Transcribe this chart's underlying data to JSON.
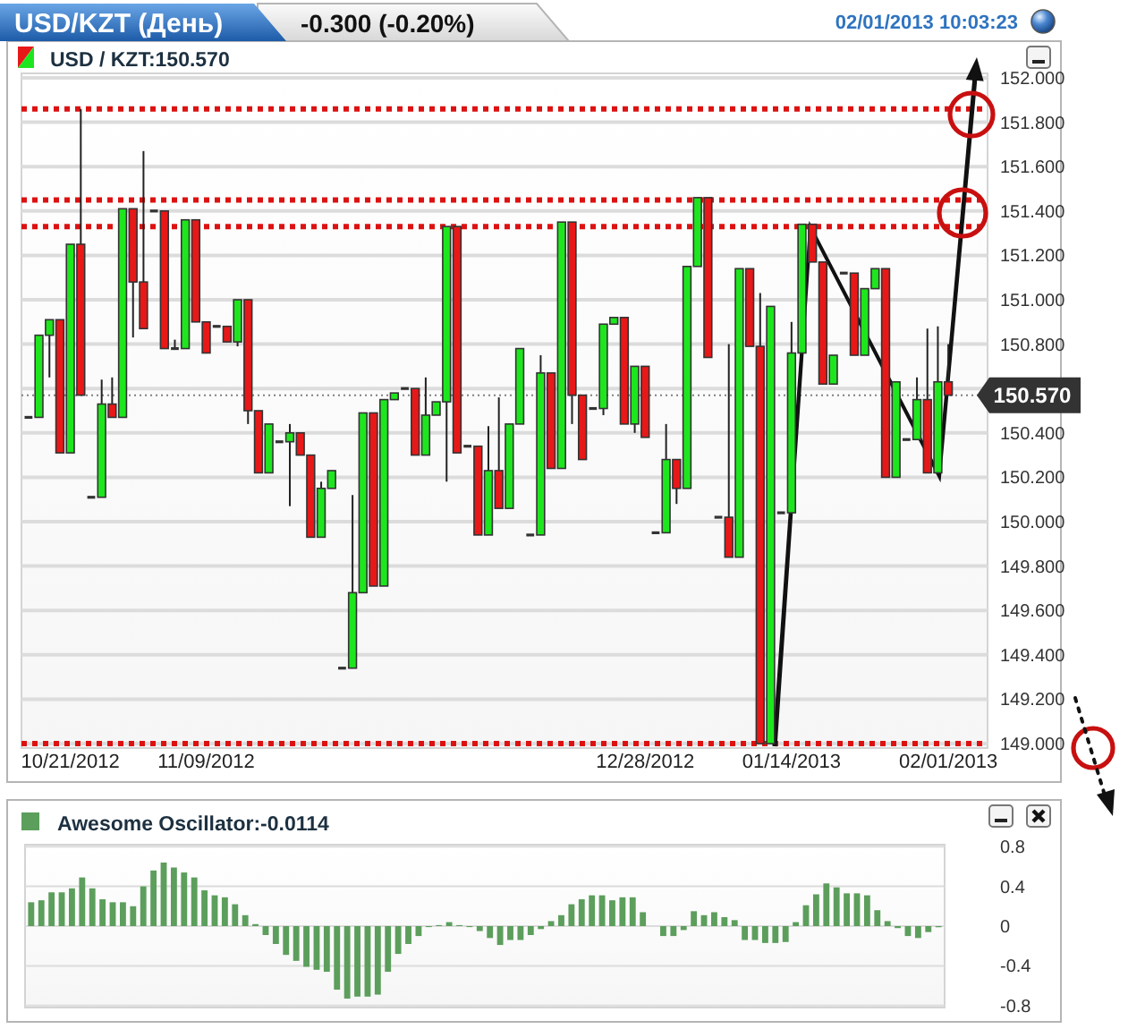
{
  "chart_data": [
    {
      "type": "candlestick",
      "title": "USD/KZT (День)",
      "subtitle": "-0.300 (-0.20%)",
      "annotations": [
        "02/01/2013 10:03:23",
        "USD / KZT:150.570"
      ],
      "categories": [
        null,
        null,
        null,
        null,
        "10/21/2012",
        null,
        null,
        null,
        null,
        null,
        null,
        null,
        null,
        null,
        null,
        null,
        null,
        "11/09/2012",
        null,
        null,
        null,
        null,
        null,
        null,
        null,
        null,
        null,
        null,
        null,
        null,
        null,
        null,
        null,
        null,
        null,
        null,
        null,
        null,
        null,
        null,
        null,
        null,
        null,
        null,
        null,
        null,
        null,
        null,
        null,
        null,
        null,
        null,
        null,
        null,
        null,
        null,
        null,
        null,
        null,
        "12/28/2012",
        null,
        null,
        null,
        null,
        null,
        null,
        null,
        null,
        null,
        null,
        null,
        null,
        null,
        "01/14/2013",
        null,
        null,
        null,
        null,
        null,
        null,
        null,
        null,
        null,
        null,
        null,
        null,
        null,
        null,
        "02/01/2013"
      ],
      "ohlc": [
        [
          150.47,
          150.47,
          150.47,
          150.47
        ],
        [
          150.47,
          150.84,
          150.47,
          150.84
        ],
        [
          150.84,
          150.91,
          150.65,
          150.91
        ],
        [
          150.91,
          150.91,
          150.31,
          150.31
        ],
        [
          150.31,
          151.25,
          150.31,
          151.25
        ],
        [
          151.25,
          151.86,
          150.57,
          150.57
        ],
        [
          150.11,
          150.11,
          150.11,
          150.11
        ],
        [
          150.11,
          150.64,
          150.11,
          150.53
        ],
        [
          150.53,
          150.65,
          150.47,
          150.47
        ],
        [
          150.47,
          151.41,
          150.47,
          151.41
        ],
        [
          151.41,
          151.41,
          150.83,
          151.08
        ],
        [
          151.08,
          151.67,
          150.87,
          150.87
        ],
        [
          151.4,
          151.4,
          151.4,
          151.4
        ],
        [
          151.4,
          151.4,
          150.78,
          150.78
        ],
        [
          150.78,
          150.82,
          150.78,
          150.78
        ],
        [
          150.78,
          151.36,
          150.78,
          151.36
        ],
        [
          151.36,
          151.36,
          150.9,
          150.9
        ],
        [
          150.9,
          150.9,
          150.76,
          150.76
        ],
        [
          150.88,
          150.88,
          150.88,
          150.88
        ],
        [
          150.88,
          150.88,
          150.81,
          150.81
        ],
        [
          150.81,
          151.0,
          150.79,
          151.0
        ],
        [
          151.0,
          151.0,
          150.44,
          150.5
        ],
        [
          150.5,
          150.5,
          150.22,
          150.22
        ],
        [
          150.22,
          150.44,
          150.22,
          150.44
        ],
        [
          150.36,
          150.36,
          150.36,
          150.36
        ],
        [
          150.36,
          150.44,
          150.07,
          150.4
        ],
        [
          150.4,
          150.4,
          150.3,
          150.3
        ],
        [
          150.3,
          150.3,
          149.93,
          149.93
        ],
        [
          149.93,
          150.18,
          149.93,
          150.15
        ],
        [
          150.15,
          150.23,
          150.15,
          150.23
        ],
        [
          149.34,
          149.34,
          149.34,
          149.34
        ],
        [
          149.34,
          150.12,
          149.34,
          149.68
        ],
        [
          149.68,
          150.49,
          149.68,
          150.49
        ],
        [
          150.49,
          150.49,
          149.71,
          149.71
        ],
        [
          149.71,
          150.55,
          149.71,
          150.55
        ],
        [
          150.55,
          150.58,
          150.55,
          150.58
        ],
        [
          150.6,
          150.6,
          150.6,
          150.6
        ],
        [
          150.6,
          150.6,
          150.3,
          150.3
        ],
        [
          150.3,
          150.65,
          150.3,
          150.48
        ],
        [
          150.48,
          150.54,
          150.48,
          150.54
        ],
        [
          150.54,
          151.33,
          150.18,
          151.33
        ],
        [
          151.33,
          151.33,
          150.31,
          150.31
        ],
        [
          150.34,
          150.34,
          150.34,
          150.34
        ],
        [
          150.34,
          150.34,
          149.94,
          149.94
        ],
        [
          149.94,
          150.43,
          149.94,
          150.23
        ],
        [
          150.23,
          150.56,
          150.06,
          150.06
        ],
        [
          150.06,
          150.44,
          150.06,
          150.44
        ],
        [
          150.44,
          150.78,
          150.44,
          150.78
        ],
        [
          149.94,
          149.94,
          149.94,
          149.94
        ],
        [
          149.94,
          150.75,
          149.94,
          150.67
        ],
        [
          150.67,
          150.67,
          150.24,
          150.24
        ],
        [
          150.24,
          151.35,
          150.24,
          151.35
        ],
        [
          151.35,
          151.35,
          150.44,
          150.57
        ],
        [
          150.57,
          150.57,
          150.28,
          150.28
        ],
        [
          150.51,
          150.51,
          150.51,
          150.51
        ],
        [
          150.51,
          150.89,
          150.48,
          150.89
        ],
        [
          150.89,
          150.92,
          150.89,
          150.92
        ],
        [
          150.92,
          150.92,
          150.44,
          150.44
        ],
        [
          150.44,
          150.7,
          150.4,
          150.7
        ],
        [
          150.7,
          150.7,
          150.38,
          150.38
        ],
        [
          149.95,
          149.95,
          149.95,
          149.95
        ],
        [
          149.95,
          150.44,
          149.95,
          150.28
        ],
        [
          150.28,
          150.28,
          150.08,
          150.15
        ],
        [
          150.15,
          151.15,
          150.15,
          151.15
        ],
        [
          151.15,
          151.46,
          151.15,
          151.46
        ],
        [
          151.46,
          151.46,
          150.74,
          150.74
        ],
        [
          150.02,
          150.02,
          150.02,
          150.02
        ],
        [
          150.02,
          150.8,
          149.84,
          149.84
        ],
        [
          149.84,
          151.14,
          149.84,
          151.14
        ],
        [
          151.14,
          151.14,
          150.79,
          150.79
        ],
        [
          150.79,
          151.03,
          149.0,
          149.0
        ],
        [
          149.0,
          150.97,
          149.0,
          150.97
        ],
        [
          150.04,
          150.04,
          150.04,
          150.04
        ],
        [
          150.04,
          150.9,
          150.04,
          150.76
        ],
        [
          150.76,
          151.34,
          150.76,
          151.34
        ],
        [
          151.34,
          151.34,
          151.17,
          151.17
        ],
        [
          151.17,
          151.17,
          150.62,
          150.62
        ],
        [
          150.62,
          150.75,
          150.62,
          150.75
        ],
        [
          151.12,
          151.12,
          151.12,
          151.12
        ],
        [
          151.12,
          151.12,
          150.75,
          150.75
        ],
        [
          150.75,
          151.05,
          150.75,
          151.05
        ],
        [
          151.05,
          151.14,
          151.05,
          151.14
        ],
        [
          151.14,
          151.14,
          150.2,
          150.2
        ],
        [
          150.2,
          150.63,
          150.2,
          150.63
        ],
        [
          150.37,
          150.37,
          150.37,
          150.37
        ],
        [
          150.37,
          150.65,
          150.37,
          150.55
        ],
        [
          150.55,
          150.87,
          150.22,
          150.22
        ],
        [
          150.22,
          150.88,
          150.22,
          150.63
        ],
        [
          150.63,
          150.8,
          150.57,
          150.57
        ]
      ],
      "ylim": [
        148.98,
        152.02
      ],
      "yticks": [
        {
          "value": 149,
          "label": "149.000"
        },
        {
          "value": 149.2,
          "label": "149.200"
        },
        {
          "value": 149.4,
          "label": "149.400"
        },
        {
          "value": 149.6,
          "label": "149.600"
        },
        {
          "value": 149.8,
          "label": "149.800"
        },
        {
          "value": 150,
          "label": "150.000"
        },
        {
          "value": 150.2,
          "label": "150.200"
        },
        {
          "value": 150.4,
          "label": "150.400"
        },
        {
          "value": 150.6,
          "label": null
        },
        {
          "value": 150.8,
          "label": "150.800"
        },
        {
          "value": 151,
          "label": "151.000"
        },
        {
          "value": 151.2,
          "label": "151.200"
        },
        {
          "value": 151.4,
          "label": "151.400"
        },
        {
          "value": 151.6,
          "label": "151.600"
        },
        {
          "value": 151.8,
          "label": "151.800"
        },
        {
          "value": 152,
          "label": "152.000"
        }
      ],
      "grid": "y",
      "ref_lines": [
        {
          "axis": "y",
          "value": 150.57,
          "label": "150.570",
          "color": "#808080",
          "line_style": "dotted"
        },
        {
          "axis": "y",
          "value": 151.86,
          "color": "#dd1111",
          "line_style": "dotted"
        },
        {
          "axis": "y",
          "value": 151.45,
          "color": "#dd1111",
          "line_style": "dotted"
        },
        {
          "axis": "y",
          "value": 151.33,
          "color": "#dd1111",
          "line_style": "dotted"
        },
        {
          "axis": "y",
          "value": 149.0,
          "color": "#dd1111",
          "line_style": "dotted"
        }
      ]
    },
    {
      "type": "bar",
      "categories": [
        null,
        null,
        null,
        null,
        null,
        null,
        null,
        null,
        null,
        null,
        null,
        null,
        null,
        null,
        null,
        null,
        null,
        null,
        null,
        null,
        null,
        null,
        null,
        null,
        null,
        null,
        null,
        null,
        null,
        null,
        null,
        null,
        null,
        null,
        null,
        null,
        null,
        null,
        null,
        null,
        null,
        null,
        null,
        null,
        null,
        null,
        null,
        null,
        null,
        null,
        null,
        null,
        null,
        null,
        null,
        null,
        null,
        null,
        null,
        null,
        null,
        null,
        null,
        null,
        null,
        null,
        null,
        null,
        null,
        null,
        null,
        null,
        null,
        null,
        null,
        null,
        null,
        null,
        null,
        null,
        null,
        null,
        null,
        null,
        null,
        null,
        null,
        null,
        null,
        null
      ],
      "series": [
        {
          "name": "Awesome Oscillator:-0.0114",
          "color": "#5c9e5c",
          "values": [
            0.24,
            0.26,
            0.34,
            0.34,
            0.38,
            0.49,
            0.38,
            0.27,
            0.24,
            0.24,
            0.2,
            0.4,
            0.56,
            0.64,
            0.59,
            0.54,
            0.49,
            0.36,
            0.31,
            0.29,
            0.22,
            0.11,
            0.02,
            -0.09,
            -0.18,
            -0.29,
            -0.35,
            -0.41,
            -0.44,
            -0.46,
            -0.64,
            -0.73,
            -0.71,
            -0.71,
            -0.69,
            -0.46,
            -0.28,
            -0.18,
            -0.1,
            -0.01,
            0.01,
            0.04,
            0.01,
            -0.01,
            -0.05,
            -0.12,
            -0.19,
            -0.14,
            -0.14,
            -0.09,
            -0.03,
            0.05,
            0.11,
            0.22,
            0.27,
            0.31,
            0.31,
            0.26,
            0.29,
            0.29,
            0.14,
            0,
            -0.1,
            -0.1,
            -0.04,
            0.15,
            0.11,
            0.14,
            0.09,
            0.06,
            -0.14,
            -0.14,
            -0.17,
            -0.17,
            -0.16,
            0.04,
            0.21,
            0.32,
            0.43,
            0.39,
            0.33,
            0.33,
            0.31,
            0.16,
            0.05,
            -0.02,
            -0.1,
            -0.12,
            -0.06,
            -0.0114
          ]
        }
      ],
      "ylim": [
        -0.82,
        0.82
      ],
      "yticks": [
        -0.8,
        -0.4,
        0,
        0.4,
        0.8
      ],
      "grid": "y",
      "legend": "top left"
    }
  ]
}
